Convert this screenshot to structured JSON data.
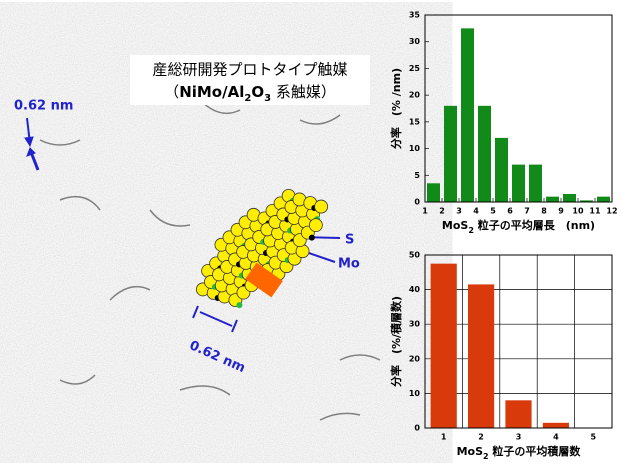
{
  "image": {
    "title": "産総研開発プロトタイプ触媒",
    "subtitle_parts": [
      "（",
      "NiMo/Al",
      "2",
      "O",
      "3",
      " 系触媒）"
    ],
    "scale_labels": [
      "0.62 nm",
      "0.62 nm"
    ],
    "atom_labels": [
      "S",
      "Mo"
    ]
  },
  "chart_data": [
    {
      "type": "histogram",
      "bins": [
        1,
        2,
        3,
        4,
        5,
        6,
        7,
        8,
        9,
        10,
        11,
        12
      ],
      "values": [
        3.5,
        18,
        32.5,
        18,
        12,
        7,
        7,
        1,
        1.5,
        0.3,
        1
      ],
      "color": "#118a1a",
      "xlim": [
        1,
        12
      ],
      "xticks": [
        1,
        2,
        3,
        4,
        5,
        6,
        7,
        8,
        9,
        10,
        11,
        12
      ],
      "ylim": [
        0,
        35
      ],
      "yticks": [
        0,
        5,
        10,
        15,
        20,
        25,
        30,
        35
      ],
      "y_label": "分率　(% /nm)",
      "x_label_parts": [
        "MoS",
        "2",
        " 粒子の平均層長　(nm)"
      ],
      "grid": false
    },
    {
      "type": "bar",
      "categories": [
        "1",
        "2",
        "3",
        "4",
        "5"
      ],
      "values": [
        47.5,
        41.5,
        8,
        1.5,
        0
      ],
      "color": "#d93a0b",
      "ylim": [
        0,
        50
      ],
      "yticks": [
        0,
        10,
        20,
        30,
        40,
        50
      ],
      "y_label": "分率　(%/積層数)",
      "x_label_parts": [
        "MoS",
        "2",
        " 粒子の平均積層数"
      ],
      "grid": true
    }
  ]
}
